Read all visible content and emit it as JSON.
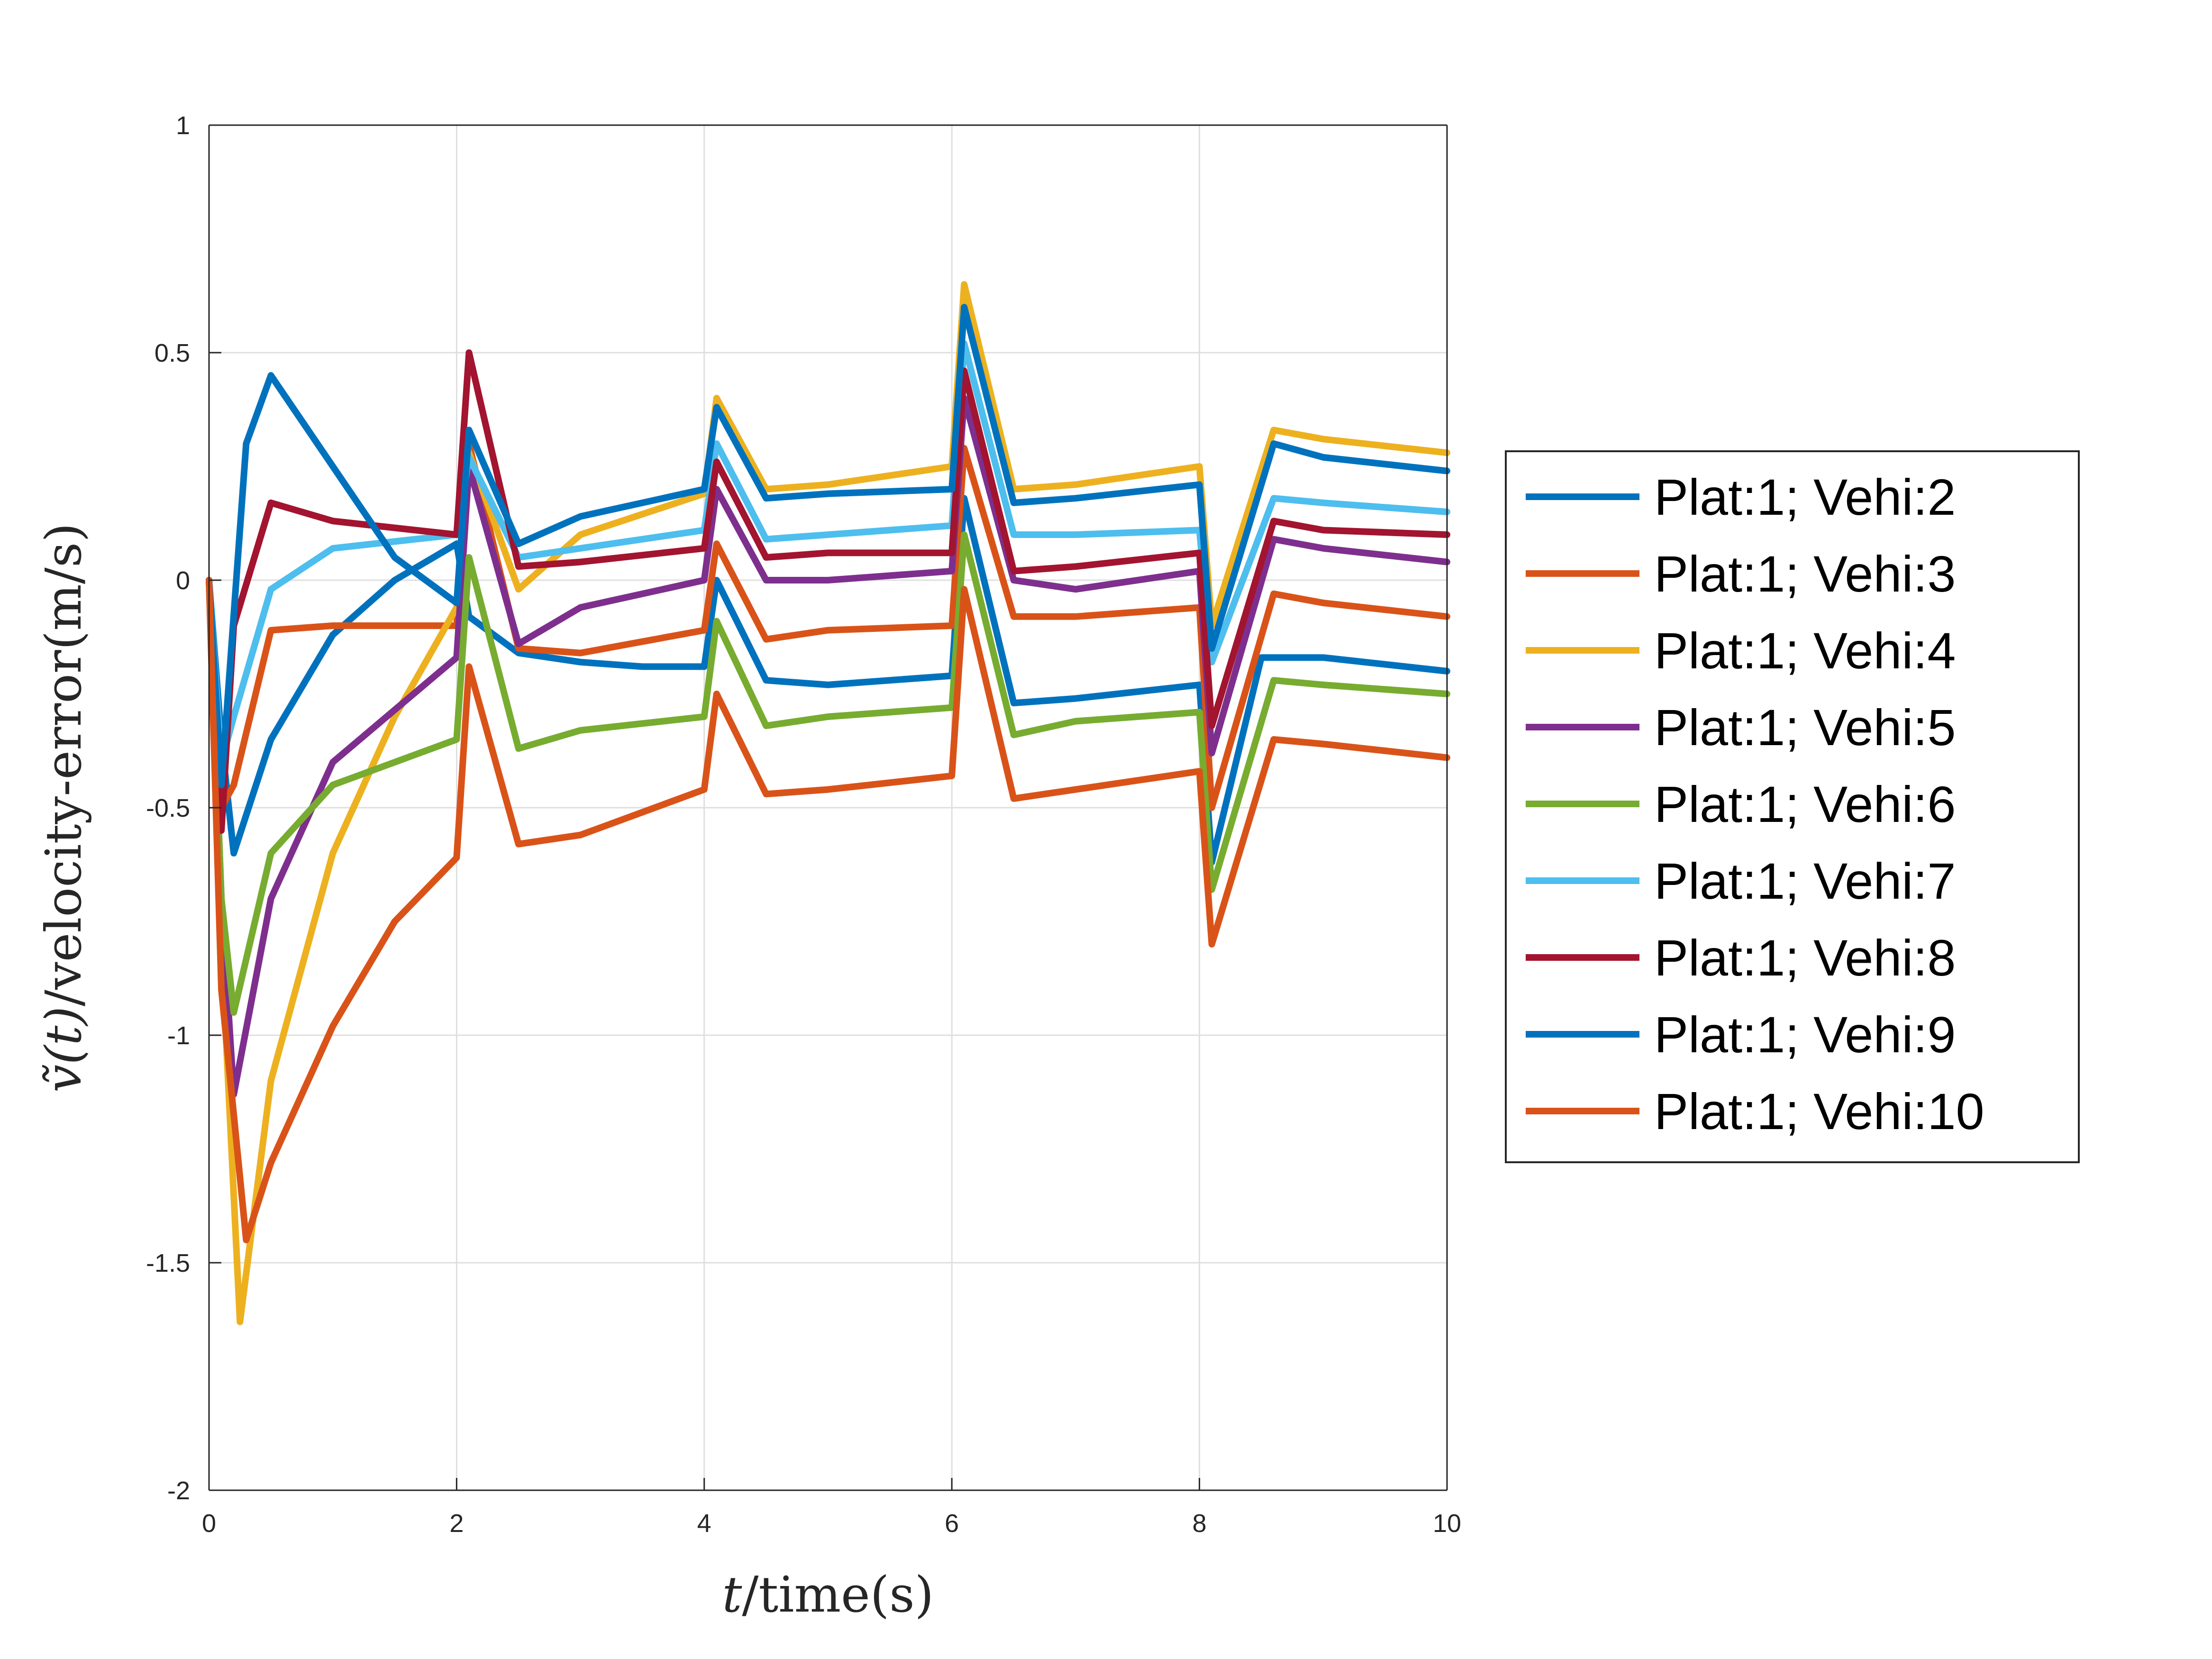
{
  "chart_data": {
    "type": "line",
    "title": "",
    "xlabel": {
      "var": "t",
      "text": "/time(s)"
    },
    "ylabel": {
      "var": "ṽ(t)",
      "text": "/velocity-error(m/s)"
    },
    "xlim": [
      0,
      10
    ],
    "ylim": [
      -2,
      1
    ],
    "xticks": [
      "0",
      "2",
      "4",
      "6",
      "8",
      "10"
    ],
    "yticks": [
      "-2",
      "-1.5",
      "-1",
      "-0.5",
      "0",
      "0.5",
      "1"
    ],
    "grid": true,
    "legend_position": "right",
    "series": [
      {
        "name": "Plat:1; Vehi:2",
        "color": "#0072BD",
        "points": [
          [
            0,
            0
          ],
          [
            0.1,
            -0.35
          ],
          [
            0.2,
            -0.6
          ],
          [
            0.5,
            -0.35
          ],
          [
            1.0,
            -0.12
          ],
          [
            1.5,
            0.0
          ],
          [
            2.0,
            0.08
          ],
          [
            2.1,
            -0.08
          ],
          [
            2.5,
            -0.16
          ],
          [
            3.0,
            -0.18
          ],
          [
            3.5,
            -0.19
          ],
          [
            4.0,
            -0.19
          ],
          [
            4.1,
            0.0
          ],
          [
            4.5,
            -0.22
          ],
          [
            5.0,
            -0.23
          ],
          [
            6.0,
            -0.21
          ],
          [
            6.1,
            0.18
          ],
          [
            6.5,
            -0.27
          ],
          [
            7.0,
            -0.26
          ],
          [
            8.0,
            -0.23
          ],
          [
            8.1,
            -0.62
          ],
          [
            8.5,
            -0.17
          ],
          [
            9.0,
            -0.17
          ],
          [
            10,
            -0.2
          ]
        ]
      },
      {
        "name": "Plat:1; Vehi:3",
        "color": "#D95319",
        "points": [
          [
            0,
            0
          ],
          [
            0.1,
            -0.5
          ],
          [
            0.2,
            -0.45
          ],
          [
            0.5,
            -0.11
          ],
          [
            1.0,
            -0.1
          ],
          [
            2.0,
            -0.1
          ],
          [
            2.1,
            0.3
          ],
          [
            2.5,
            -0.15
          ],
          [
            3.0,
            -0.16
          ],
          [
            4.0,
            -0.11
          ],
          [
            4.1,
            0.08
          ],
          [
            4.5,
            -0.13
          ],
          [
            5.0,
            -0.11
          ],
          [
            6.0,
            -0.1
          ],
          [
            6.1,
            0.29
          ],
          [
            6.5,
            -0.08
          ],
          [
            7.0,
            -0.08
          ],
          [
            8.0,
            -0.06
          ],
          [
            8.1,
            -0.5
          ],
          [
            8.6,
            -0.03
          ],
          [
            9.0,
            -0.05
          ],
          [
            10,
            -0.08
          ]
        ]
      },
      {
        "name": "Plat:1; Vehi:4",
        "color": "#EDB120",
        "points": [
          [
            0,
            0
          ],
          [
            0.1,
            -0.8
          ],
          [
            0.25,
            -1.63
          ],
          [
            0.5,
            -1.1
          ],
          [
            1.0,
            -0.6
          ],
          [
            1.5,
            -0.3
          ],
          [
            2.0,
            -0.06
          ],
          [
            2.1,
            0.28
          ],
          [
            2.5,
            -0.02
          ],
          [
            3.0,
            0.1
          ],
          [
            4.0,
            0.19
          ],
          [
            4.1,
            0.4
          ],
          [
            4.5,
            0.2
          ],
          [
            5.0,
            0.21
          ],
          [
            6.0,
            0.25
          ],
          [
            6.1,
            0.65
          ],
          [
            6.5,
            0.2
          ],
          [
            7.0,
            0.21
          ],
          [
            8.0,
            0.25
          ],
          [
            8.1,
            -0.1
          ],
          [
            8.6,
            0.33
          ],
          [
            9.0,
            0.31
          ],
          [
            10,
            0.28
          ]
        ]
      },
      {
        "name": "Plat:1; Vehi:5",
        "color": "#7E2F8E",
        "points": [
          [
            0,
            0
          ],
          [
            0.1,
            -0.7
          ],
          [
            0.2,
            -1.13
          ],
          [
            0.5,
            -0.7
          ],
          [
            1.0,
            -0.4
          ],
          [
            2.0,
            -0.17
          ],
          [
            2.1,
            0.25
          ],
          [
            2.5,
            -0.14
          ],
          [
            3.0,
            -0.06
          ],
          [
            4.0,
            0.0
          ],
          [
            4.1,
            0.2
          ],
          [
            4.5,
            0.0
          ],
          [
            5.0,
            0.0
          ],
          [
            6.0,
            0.02
          ],
          [
            6.1,
            0.4
          ],
          [
            6.5,
            0.0
          ],
          [
            7.0,
            -0.02
          ],
          [
            8.0,
            0.02
          ],
          [
            8.1,
            -0.38
          ],
          [
            8.6,
            0.09
          ],
          [
            9.0,
            0.07
          ],
          [
            10,
            0.04
          ]
        ]
      },
      {
        "name": "Plat:1; Vehi:6",
        "color": "#77AC30",
        "points": [
          [
            0,
            0
          ],
          [
            0.1,
            -0.7
          ],
          [
            0.2,
            -0.95
          ],
          [
            0.5,
            -0.6
          ],
          [
            1.0,
            -0.45
          ],
          [
            2.0,
            -0.35
          ],
          [
            2.1,
            0.05
          ],
          [
            2.5,
            -0.37
          ],
          [
            3.0,
            -0.33
          ],
          [
            4.0,
            -0.3
          ],
          [
            4.1,
            -0.09
          ],
          [
            4.5,
            -0.32
          ],
          [
            5.0,
            -0.3
          ],
          [
            6.0,
            -0.28
          ],
          [
            6.1,
            0.1
          ],
          [
            6.5,
            -0.34
          ],
          [
            7.0,
            -0.31
          ],
          [
            8.0,
            -0.29
          ],
          [
            8.1,
            -0.68
          ],
          [
            8.6,
            -0.22
          ],
          [
            9.0,
            -0.23
          ],
          [
            10,
            -0.25
          ]
        ]
      },
      {
        "name": "Plat:1; Vehi:7",
        "color": "#4DBEEE",
        "points": [
          [
            0,
            0
          ],
          [
            0.1,
            -0.4
          ],
          [
            0.2,
            -0.3
          ],
          [
            0.5,
            -0.02
          ],
          [
            1.0,
            0.07
          ],
          [
            2.0,
            0.1
          ],
          [
            2.1,
            0.27
          ],
          [
            2.5,
            0.05
          ],
          [
            3.0,
            0.07
          ],
          [
            4.0,
            0.11
          ],
          [
            4.1,
            0.3
          ],
          [
            4.5,
            0.09
          ],
          [
            5.0,
            0.1
          ],
          [
            6.0,
            0.12
          ],
          [
            6.1,
            0.52
          ],
          [
            6.5,
            0.1
          ],
          [
            7.0,
            0.1
          ],
          [
            8.0,
            0.11
          ],
          [
            8.1,
            -0.18
          ],
          [
            8.6,
            0.18
          ],
          [
            9.0,
            0.17
          ],
          [
            10,
            0.15
          ]
        ]
      },
      {
        "name": "Plat:1; Vehi:8",
        "color": "#A2142F",
        "points": [
          [
            0,
            0
          ],
          [
            0.1,
            -0.55
          ],
          [
            0.2,
            -0.1
          ],
          [
            0.5,
            0.17
          ],
          [
            1.0,
            0.13
          ],
          [
            2.0,
            0.1
          ],
          [
            2.1,
            0.5
          ],
          [
            2.5,
            0.03
          ],
          [
            3.0,
            0.04
          ],
          [
            4.0,
            0.07
          ],
          [
            4.1,
            0.26
          ],
          [
            4.5,
            0.05
          ],
          [
            5.0,
            0.06
          ],
          [
            6.0,
            0.06
          ],
          [
            6.1,
            0.46
          ],
          [
            6.5,
            0.02
          ],
          [
            7.0,
            0.03
          ],
          [
            8.0,
            0.06
          ],
          [
            8.1,
            -0.32
          ],
          [
            8.6,
            0.13
          ],
          [
            9.0,
            0.11
          ],
          [
            10,
            0.1
          ]
        ]
      },
      {
        "name": "Plat:1; Vehi:9",
        "color": "#0072BD",
        "points": [
          [
            0,
            0
          ],
          [
            0.1,
            -0.45
          ],
          [
            0.3,
            0.3
          ],
          [
            0.5,
            0.45
          ],
          [
            1.0,
            0.25
          ],
          [
            1.5,
            0.05
          ],
          [
            2.0,
            -0.05
          ],
          [
            2.1,
            0.33
          ],
          [
            2.5,
            0.08
          ],
          [
            3.0,
            0.14
          ],
          [
            4.0,
            0.2
          ],
          [
            4.1,
            0.38
          ],
          [
            4.5,
            0.18
          ],
          [
            5.0,
            0.19
          ],
          [
            6.0,
            0.2
          ],
          [
            6.1,
            0.6
          ],
          [
            6.5,
            0.17
          ],
          [
            7.0,
            0.18
          ],
          [
            8.0,
            0.21
          ],
          [
            8.1,
            -0.15
          ],
          [
            8.6,
            0.3
          ],
          [
            9.0,
            0.27
          ],
          [
            10,
            0.24
          ]
        ]
      },
      {
        "name": "Plat:1; Vehi:10",
        "color": "#D95319",
        "points": [
          [
            0,
            0
          ],
          [
            0.1,
            -0.9
          ],
          [
            0.3,
            -1.45
          ],
          [
            0.5,
            -1.28
          ],
          [
            1.0,
            -0.98
          ],
          [
            1.5,
            -0.75
          ],
          [
            2.0,
            -0.61
          ],
          [
            2.1,
            -0.19
          ],
          [
            2.5,
            -0.58
          ],
          [
            3.0,
            -0.56
          ],
          [
            4.0,
            -0.46
          ],
          [
            4.1,
            -0.25
          ],
          [
            4.5,
            -0.47
          ],
          [
            5.0,
            -0.46
          ],
          [
            6.0,
            -0.43
          ],
          [
            6.1,
            -0.02
          ],
          [
            6.5,
            -0.48
          ],
          [
            7.0,
            -0.46
          ],
          [
            8.0,
            -0.42
          ],
          [
            8.1,
            -0.8
          ],
          [
            8.6,
            -0.35
          ],
          [
            9.0,
            -0.36
          ],
          [
            10,
            -0.39
          ]
        ]
      }
    ]
  }
}
